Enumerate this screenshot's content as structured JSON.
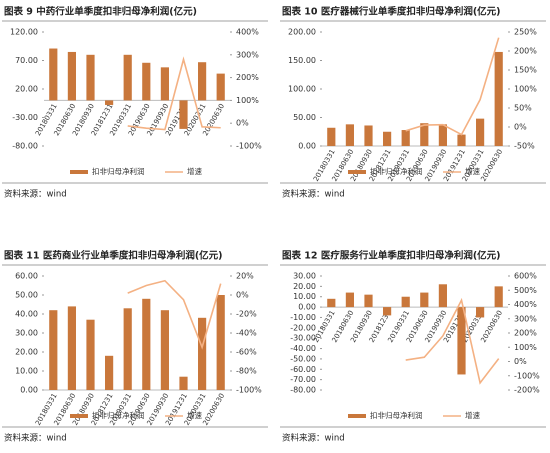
{
  "chart_data": [
    {
      "type": "bar",
      "title": "图表 9 中药行业单季度扣非归母净利润(亿元)",
      "source": "资料来源：wind",
      "categories": [
        "20180331",
        "20180630",
        "20180930",
        "20181231",
        "20190331",
        "20190630",
        "20190930",
        "20191231",
        "20200331",
        "20200630"
      ],
      "series": [
        {
          "name": "扣非归母净利润",
          "color": "#c9773b",
          "values": [
            91,
            85,
            80,
            -8,
            80,
            66,
            58,
            -50,
            67,
            47
          ]
        },
        {
          "name": "增速",
          "type": "line",
          "axis": "y2",
          "color": "#f4b183",
          "values": [
            null,
            null,
            null,
            null,
            -12,
            -22,
            -28,
            280,
            -16,
            -20
          ]
        }
      ],
      "ylim": [
        -80,
        120
      ],
      "yticks": [
        {
          "value": -80,
          "label": "-80.00"
        },
        {
          "value": -30,
          "label": "-30.00"
        },
        {
          "value": 20,
          "label": "20.00"
        },
        {
          "value": 70,
          "label": "70.00"
        },
        {
          "value": 120,
          "label": "120.00"
        }
      ],
      "y2lim": [
        -100,
        400
      ],
      "y2ticks": [
        {
          "value": -100,
          "label": "-100%"
        },
        {
          "value": 0,
          "label": "0%"
        },
        {
          "value": 100,
          "label": "100%"
        },
        {
          "value": 200,
          "label": "200%"
        },
        {
          "value": 300,
          "label": "300%"
        },
        {
          "value": 400,
          "label": "400%"
        }
      ]
    },
    {
      "type": "bar",
      "title": "图表 10 医疗器械行业单季度扣非归母净利润(亿元)",
      "source": "资料来源：wind",
      "categories": [
        "20180331",
        "20180630",
        "20180930",
        "20181231",
        "20190331",
        "20190630",
        "20190930",
        "20191231",
        "20200331",
        "20200630"
      ],
      "series": [
        {
          "name": "扣非归母净利润",
          "color": "#c9773b",
          "values": [
            32,
            38,
            36,
            25,
            28,
            40,
            38,
            20,
            48,
            165
          ]
        },
        {
          "name": "增速",
          "type": "line",
          "axis": "y2",
          "color": "#f4b183",
          "values": [
            null,
            null,
            null,
            null,
            -10,
            5,
            6,
            -20,
            72,
            235
          ]
        }
      ],
      "ylim": [
        0,
        200
      ],
      "yticks": [
        {
          "value": 0,
          "label": "0.00"
        },
        {
          "value": 50,
          "label": "50.00"
        },
        {
          "value": 100,
          "label": "100.00"
        },
        {
          "value": 150,
          "label": "150.00"
        },
        {
          "value": 200,
          "label": "200.00"
        }
      ],
      "y2lim": [
        -50,
        250
      ],
      "y2ticks": [
        {
          "value": -50,
          "label": "-50%"
        },
        {
          "value": 0,
          "label": "0%"
        },
        {
          "value": 50,
          "label": "50%"
        },
        {
          "value": 100,
          "label": "100%"
        },
        {
          "value": 150,
          "label": "150%"
        },
        {
          "value": 200,
          "label": "200%"
        },
        {
          "value": 250,
          "label": "250%"
        }
      ]
    },
    {
      "type": "bar",
      "title": "图表 11 医药商业行业单季度扣非归母净利润(亿元)",
      "source": "资料来源：wind",
      "categories": [
        "20180331",
        "20180630",
        "20180930",
        "20181231",
        "20190331",
        "20190630",
        "20190930",
        "20191231",
        "20200331",
        "20200630"
      ],
      "series": [
        {
          "name": "扣非归母净利润",
          "color": "#c9773b",
          "values": [
            42,
            44,
            37,
            18,
            43,
            48,
            42,
            7,
            38,
            50
          ]
        },
        {
          "name": "增速",
          "type": "line",
          "axis": "y2",
          "color": "#f4b183",
          "values": [
            null,
            null,
            null,
            null,
            2,
            10,
            15,
            -5,
            -55,
            12
          ]
        }
      ],
      "ylim": [
        0,
        60
      ],
      "yticks": [
        {
          "value": 0,
          "label": "0.00"
        },
        {
          "value": 10,
          "label": "10.00"
        },
        {
          "value": 20,
          "label": "20.00"
        },
        {
          "value": 30,
          "label": "30.00"
        },
        {
          "value": 40,
          "label": "40.00"
        },
        {
          "value": 50,
          "label": "50.00"
        },
        {
          "value": 60,
          "label": "60.00"
        }
      ],
      "y2lim": [
        -100,
        20
      ],
      "y2ticks": [
        {
          "value": -100,
          "label": "-100%"
        },
        {
          "value": -80,
          "label": "-80%"
        },
        {
          "value": -60,
          "label": "-60%"
        },
        {
          "value": -40,
          "label": "-40%"
        },
        {
          "value": -20,
          "label": "-20%"
        },
        {
          "value": 0,
          "label": "0%"
        },
        {
          "value": 20,
          "label": "20%"
        }
      ]
    },
    {
      "type": "bar",
      "title": "图表 12 医疗服务行业单季度扣非归母净利润(亿元)",
      "source": "资料来源：wind",
      "categories": [
        "20180331",
        "20180630",
        "20180930",
        "20181231",
        "20190331",
        "20190630",
        "20190930",
        "20191231",
        "20200331",
        "20200630"
      ],
      "series": [
        {
          "name": "扣非归母净利润",
          "color": "#c9773b",
          "values": [
            8,
            14,
            12,
            -8,
            10,
            14,
            22,
            -65,
            -10,
            20
          ]
        },
        {
          "name": "增速",
          "type": "line",
          "axis": "y2",
          "color": "#f4b183",
          "values": [
            null,
            null,
            null,
            null,
            10,
            30,
            180,
            430,
            -150,
            20
          ]
        }
      ],
      "ylim": [
        -80,
        30
      ],
      "yticks": [
        {
          "value": -80,
          "label": "-80.00"
        },
        {
          "value": -70,
          "label": "-70.00"
        },
        {
          "value": -60,
          "label": "-60.00"
        },
        {
          "value": -50,
          "label": "-50.00"
        },
        {
          "value": -40,
          "label": "-40.00"
        },
        {
          "value": -30,
          "label": "-30.00"
        },
        {
          "value": -20,
          "label": "-20.00"
        },
        {
          "value": -10,
          "label": "-10.00"
        },
        {
          "value": 0,
          "label": "0.00"
        },
        {
          "value": 10,
          "label": "10.00"
        },
        {
          "value": 20,
          "label": "20.00"
        },
        {
          "value": 30,
          "label": "30.00"
        }
      ],
      "y2lim": [
        -200,
        600
      ],
      "y2ticks": [
        {
          "value": -200,
          "label": "-200%"
        },
        {
          "value": -100,
          "label": "-100%"
        },
        {
          "value": 0,
          "label": "0%"
        },
        {
          "value": 100,
          "label": "100%"
        },
        {
          "value": 200,
          "label": "200%"
        },
        {
          "value": 300,
          "label": "300%"
        },
        {
          "value": 400,
          "label": "400%"
        },
        {
          "value": 500,
          "label": "500%"
        },
        {
          "value": 600,
          "label": "600%"
        }
      ]
    }
  ]
}
